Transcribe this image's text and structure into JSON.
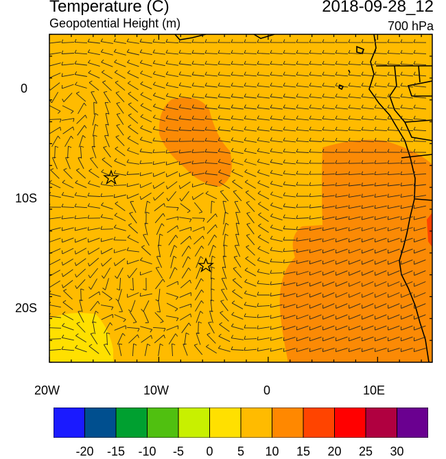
{
  "header": {
    "title": "Temperature (C)",
    "subtitle": "Geopotential Height (m)",
    "datetime": "2018-09-28_12",
    "level": "700 hPa"
  },
  "axes": {
    "lon_labels": [
      "20W",
      "10W",
      "0",
      "10E"
    ],
    "lat_labels": [
      "0",
      "10S",
      "20S"
    ],
    "lon_range": [
      -20,
      15
    ],
    "lat_range": [
      -25,
      5
    ]
  },
  "colorbar": {
    "labels": [
      "-20",
      "-15",
      "-10",
      "-5",
      "0",
      "5",
      "10",
      "15",
      "20",
      "25",
      "30"
    ],
    "colors": [
      "#1a1aff",
      "#004f8f",
      "#00a030",
      "#50c010",
      "#c8f000",
      "#ffe000",
      "#ffbb00",
      "#ff8800",
      "#ff4400",
      "#ff0000",
      "#b00040",
      "#6a0090"
    ]
  },
  "field": {
    "base_color": "#ffbb00",
    "warm_color": "#fb8a05",
    "cool_color": "#ffe000",
    "coast_color": "#000000",
    "station_marker": "star-icon"
  }
}
